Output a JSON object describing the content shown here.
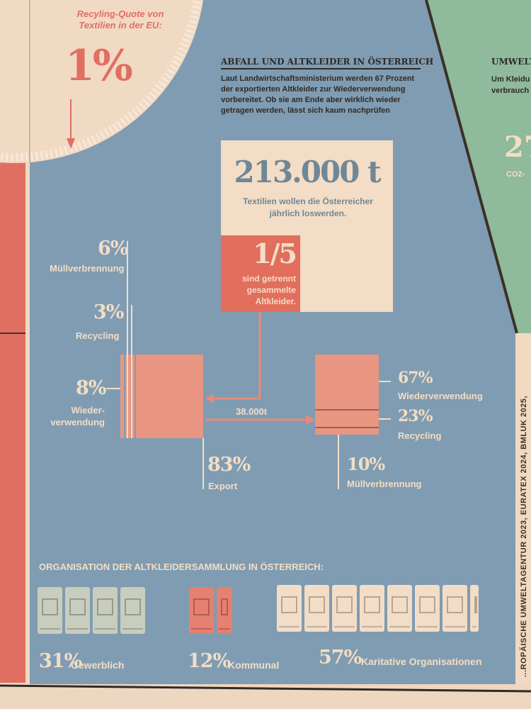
{
  "eu_quote": {
    "label": "Recyling-Quote von Textilien in der EU:",
    "value": "1%"
  },
  "header": {
    "title": "ABFALL UND ALTKLEIDER IN ÖSTERREICH",
    "intro": "Laut Landwirtschaftsministerium werden 67 Prozent der exportierten Altkleider zur Wiederverwendung vorbereitet. Ob sie am Ende aber wirklich wieder getragen werden, lässt sich kaum nachprüfen"
  },
  "total": {
    "value": "213.000 t",
    "caption": "Textilien wollen die Österreicher jährlich loswerden."
  },
  "separate": {
    "value": "1/5",
    "caption": "sind getrennt gesammelte Altkleider."
  },
  "domestic": [
    {
      "value": "6%",
      "label": "Müllverbrennung"
    },
    {
      "value": "3%",
      "label": "Recycling"
    },
    {
      "value": "8%",
      "label": "Wieder-verwendung"
    },
    {
      "value": "83%",
      "label": "Export"
    }
  ],
  "export_flow": "38.000t",
  "export": [
    {
      "value": "67%",
      "label": "Wiederverwendung"
    },
    {
      "value": "23%",
      "label": "Recycling"
    },
    {
      "value": "10%",
      "label": "Müllverbrennung"
    }
  ],
  "organisation": {
    "title": "ORGANISATION DER ALTKLEIDERSAMMLUNG IN ÖSTERREICH:",
    "groups": [
      {
        "value": "31%",
        "label": "Gewerblich",
        "bins": 4,
        "color": "#c9cdbd"
      },
      {
        "value": "12%",
        "label": "Kommunal",
        "bins": 2,
        "color": "#e6806f"
      },
      {
        "value": "57%",
        "label": "Karitative Organisationen",
        "bins": 8,
        "color": "#f3ddc6"
      }
    ]
  },
  "right_panel": {
    "title": "UMWELT",
    "text1": "Um Kleidu",
    "text2": "verbrauch",
    "number": "27",
    "unit": "CO2-"
  },
  "source": "...ROPÄISCHE UMWELTAGENTUR 2023, EURATEX 2024, BMLUK 2025,",
  "colors": {
    "blue": "#7f9cb2",
    "cream": "#f3ddc6",
    "salmon": "#e88a78",
    "green": "#8fba9c",
    "red": "#e06f62"
  }
}
